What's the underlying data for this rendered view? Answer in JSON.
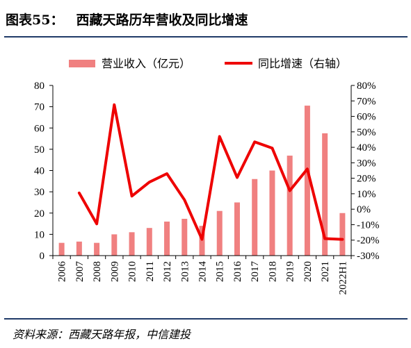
{
  "header": {
    "figure_number": "图表55：",
    "title": "西藏天路历年营收及同比增速"
  },
  "footer": {
    "source": "资料来源：西藏天路年报，中信建投"
  },
  "colors": {
    "bar": "#f08080",
    "line": "#ee0000",
    "rule": "#1f3a68"
  },
  "chart_data": {
    "type": "bar",
    "categories": [
      "2006",
      "2007",
      "2008",
      "2009",
      "2010",
      "2011",
      "2012",
      "2013",
      "2014",
      "2015",
      "2016",
      "2017",
      "2018",
      "2019",
      "2020",
      "2021",
      "2022H1"
    ],
    "series": [
      {
        "name": "营业收入（亿元）",
        "type": "bar",
        "axis": "left",
        "values": [
          6,
          6.6,
          6,
          10,
          11,
          13,
          16,
          17.3,
          14,
          21,
          25,
          36,
          40,
          47,
          70.5,
          57.5,
          20
        ]
      },
      {
        "name": "同比增速（右轴）",
        "type": "line",
        "axis": "right",
        "values": [
          null,
          10.5,
          -9.5,
          67.5,
          8.5,
          17.5,
          23,
          6,
          -19.5,
          47,
          20.5,
          43.5,
          39.5,
          12,
          26,
          -19,
          -19.5
        ]
      }
    ],
    "y_left": {
      "min": 0,
      "max": 80,
      "ticks": [
        0,
        10,
        20,
        30,
        40,
        50,
        60,
        70,
        80
      ]
    },
    "y_right": {
      "min": -30,
      "max": 80,
      "ticks": [
        "-30%",
        "-20%",
        "-10%",
        "0%",
        "10%",
        "20%",
        "30%",
        "40%",
        "50%",
        "60%",
        "70%",
        "80%"
      ]
    },
    "legend_position": "top",
    "grid": false
  }
}
